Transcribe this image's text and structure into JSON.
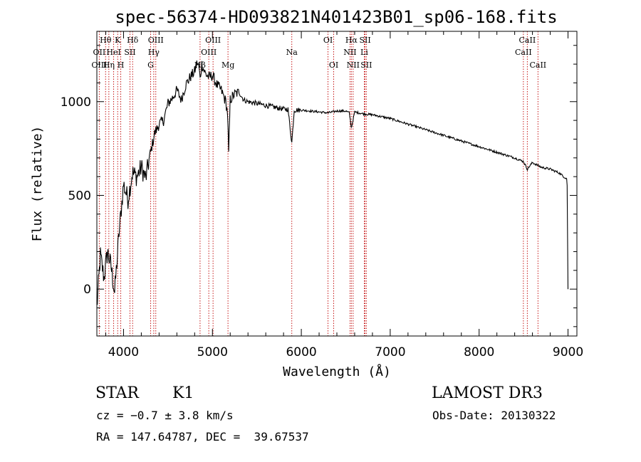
{
  "chart_data": {
    "type": "line",
    "title": "spec-56374-HD093821N401423B01_sp06-168.fits",
    "xlabel": "Wavelength (Å)",
    "ylabel": "Flux (relative)",
    "xlim": [
      3700,
      9100
    ],
    "ylim": [
      -250,
      1375
    ],
    "x_ticks": [
      4000,
      5000,
      6000,
      7000,
      8000,
      9000
    ],
    "y_ticks": [
      0,
      500,
      1000
    ],
    "series": [
      {
        "name": "flux",
        "x": [
          3700,
          3740,
          3780,
          3820,
          3860,
          3900,
          3950,
          4000,
          4050,
          4100,
          4150,
          4200,
          4250,
          4300,
          4350,
          4400,
          4450,
          4500,
          4550,
          4600,
          4650,
          4700,
          4750,
          4800,
          4830,
          4850,
          4861,
          4880,
          4920,
          4960,
          5000,
          5050,
          5100,
          5150,
          5170,
          5183,
          5200,
          5250,
          5300,
          5350,
          5400,
          5500,
          5600,
          5700,
          5800,
          5850,
          5893,
          5920,
          6000,
          6100,
          6200,
          6300,
          6400,
          6500,
          6540,
          6563,
          6600,
          6700,
          6800,
          6900,
          7000,
          7200,
          7400,
          7600,
          7800,
          8000,
          8200,
          8400,
          8500,
          8542,
          8600,
          8700,
          8800,
          8900,
          8950,
          8985,
          8990,
          9000
        ],
        "y": [
          -100,
          180,
          60,
          200,
          120,
          -20,
          300,
          560,
          480,
          620,
          600,
          650,
          590,
          720,
          830,
          880,
          900,
          990,
          1020,
          1060,
          1010,
          1090,
          1130,
          1160,
          1210,
          1180,
          1120,
          1200,
          1150,
          1130,
          1140,
          1090,
          1060,
          1000,
          940,
          720,
          1010,
          1040,
          1050,
          1010,
          1000,
          990,
          980,
          970,
          960,
          960,
          780,
          955,
          955,
          950,
          945,
          940,
          950,
          950,
          940,
          860,
          945,
          935,
          930,
          920,
          910,
          880,
          850,
          820,
          790,
          760,
          730,
          700,
          680,
          640,
          675,
          650,
          640,
          620,
          600,
          590,
          550,
          0
        ]
      }
    ],
    "spectral_lines": [
      {
        "label": "Hθ",
        "x": 3798,
        "row": 0
      },
      {
        "label": "OII",
        "x": 3727,
        "row": 1
      },
      {
        "label": "OIII",
        "x": 3727,
        "row": 2
      },
      {
        "label": "K",
        "x": 3934,
        "row": 0
      },
      {
        "label": "HeI",
        "x": 3889,
        "row": 1
      },
      {
        "label": "Hη",
        "x": 3835,
        "row": 2
      },
      {
        "label": "Hδ",
        "x": 4102,
        "row": 0
      },
      {
        "label": "SII",
        "x": 4072,
        "row": 1
      },
      {
        "label": "H",
        "x": 3969,
        "row": 2
      },
      {
        "label": "OIII",
        "x": 4363,
        "row": 0
      },
      {
        "label": "Hγ",
        "x": 4340,
        "row": 1
      },
      {
        "label": "G",
        "x": 4305,
        "row": 2
      },
      {
        "label": "OIII",
        "x": 5007,
        "row": 0
      },
      {
        "label": "OIII",
        "x": 4959,
        "row": 1
      },
      {
        "label": "Hβ",
        "x": 4861,
        "row": 2
      },
      {
        "label": "Mg",
        "x": 5175,
        "row": 2
      },
      {
        "label": "Na",
        "x": 5893,
        "row": 1
      },
      {
        "label": "OI",
        "x": 6300,
        "row": 0
      },
      {
        "label": "OI",
        "x": 6364,
        "row": 2
      },
      {
        "label": "Hα",
        "x": 6563,
        "row": 0
      },
      {
        "label": "NII",
        "x": 6548,
        "row": 1
      },
      {
        "label": "NII",
        "x": 6583,
        "row": 2
      },
      {
        "label": "SII",
        "x": 6717,
        "row": 0
      },
      {
        "label": "Li",
        "x": 6708,
        "row": 1
      },
      {
        "label": "SII",
        "x": 6731,
        "row": 2
      },
      {
        "label": "CaII",
        "x": 8542,
        "row": 0
      },
      {
        "label": "CaII",
        "x": 8498,
        "row": 1
      },
      {
        "label": "CaII",
        "x": 8662,
        "row": 2
      }
    ]
  },
  "footer": {
    "object_class": "STAR",
    "subclass": "K1",
    "survey": "LAMOST DR3",
    "cz": "cz = −0.7 ± 3.8 km/s",
    "obs_date": "Obs-Date: 20130322",
    "radec": "RA = 147.64787, DEC =  39.67537"
  },
  "colors": {
    "spectrum": "#000000",
    "line_marker": "#c00000",
    "axes": "#000000"
  }
}
